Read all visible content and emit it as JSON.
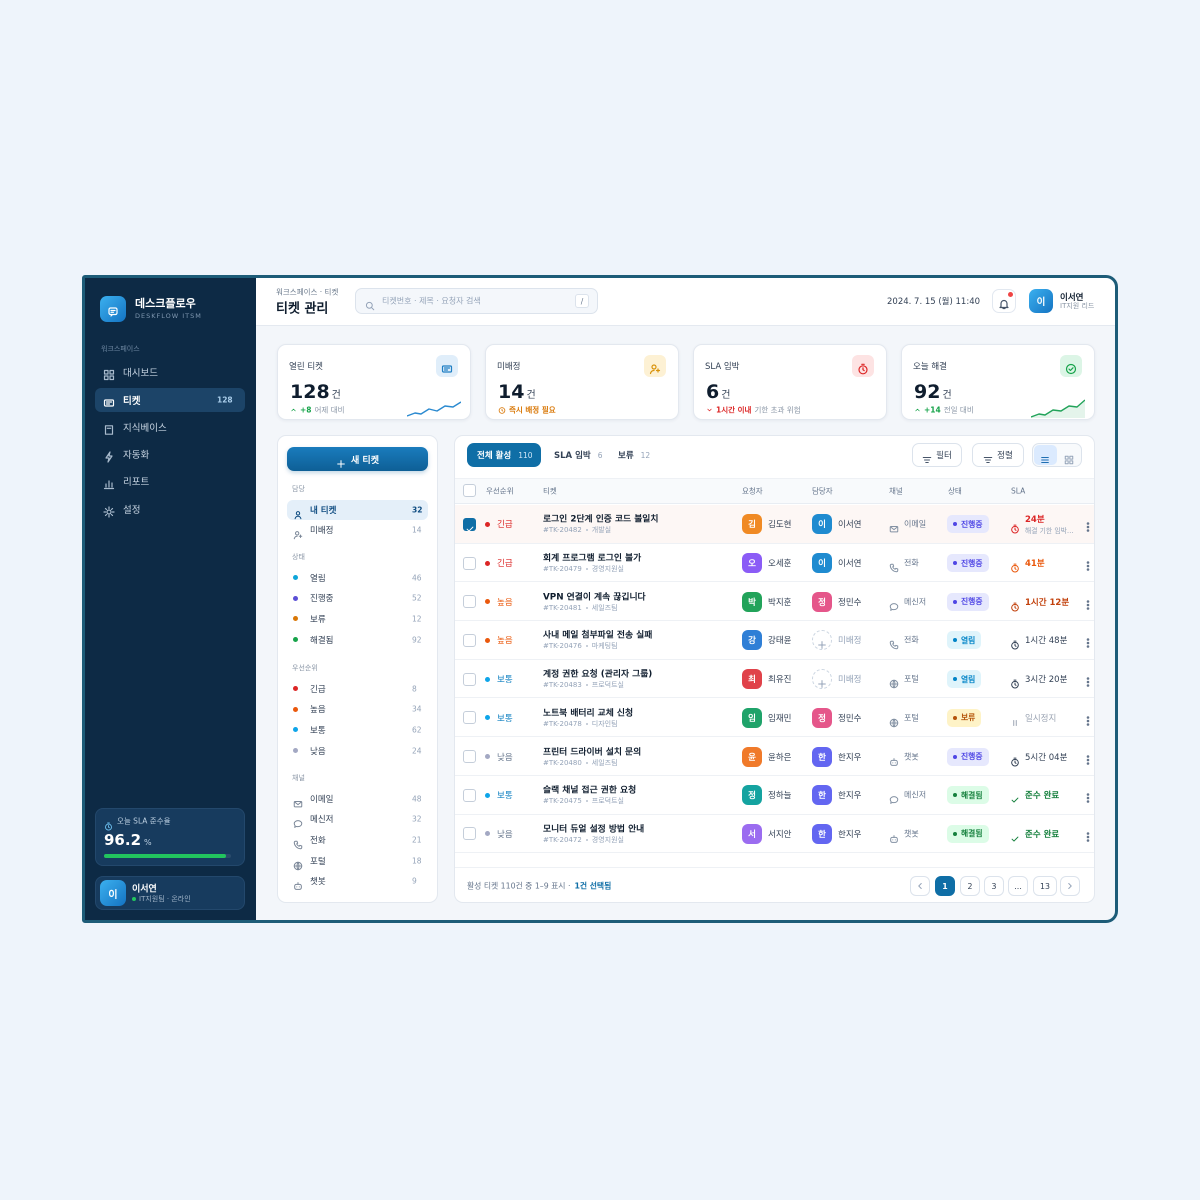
{
  "sidebar": {
    "brand": "데스크플로우",
    "brand_sub": "DESKFLOW ITSM",
    "section": "워크스페이스",
    "nav": [
      {
        "label": "대시보드"
      },
      {
        "label": "티켓",
        "count": 128
      },
      {
        "label": "지식베이스"
      },
      {
        "label": "자동화"
      },
      {
        "label": "리포트"
      },
      {
        "label": "설정"
      }
    ],
    "sla": {
      "label": "오늘 SLA 준수율",
      "value": 96.2,
      "unit": "%"
    },
    "user": {
      "avatar": "이",
      "name": "이서연",
      "status": "IT지원팀 · 온라인"
    }
  },
  "header": {
    "breadcrumb": "워크스페이스 · 티켓",
    "title": "티켓 관리",
    "search_placeholder": "티켓번호 · 제목 · 요청자 검색",
    "search_shortcut": "/",
    "datetime": "2024. 7. 15 (월) 11:40",
    "user": {
      "avatar": "이",
      "name": "이서연",
      "role": "IT지원 리드"
    }
  },
  "kpis": [
    {
      "label": "열린 티켓",
      "value": 128,
      "unit": "건",
      "delta": "+8",
      "note": "어제 대비"
    },
    {
      "label": "미배정",
      "value": 14,
      "unit": "건",
      "note": "즉시 배정 필요"
    },
    {
      "label": "SLA 임박",
      "value": 6,
      "unit": "건",
      "delta": "1시간 이내",
      "note": "기한 초과 위험"
    },
    {
      "label": "오늘 해결",
      "value": 92,
      "unit": "건",
      "delta": "+14",
      "note": "전일 대비"
    }
  ],
  "filters": {
    "new_button": "새 티켓",
    "groups": [
      {
        "title": "담당",
        "items": [
          {
            "label": "내 티켓",
            "count": 32
          },
          {
            "label": "미배정",
            "count": 14
          }
        ]
      },
      {
        "title": "상태",
        "items": [
          {
            "label": "열림",
            "count": 46
          },
          {
            "label": "진행중",
            "count": 52
          },
          {
            "label": "보류",
            "count": 12
          },
          {
            "label": "해결됨",
            "count": 92
          }
        ]
      },
      {
        "title": "우선순위",
        "items": [
          {
            "label": "긴급",
            "count": 8
          },
          {
            "label": "높음",
            "count": 34
          },
          {
            "label": "보통",
            "count": 62
          },
          {
            "label": "낮음",
            "count": 24
          }
        ]
      },
      {
        "title": "채널",
        "items": [
          {
            "label": "이메일",
            "count": 48
          },
          {
            "label": "메신저",
            "count": 32
          },
          {
            "label": "전화",
            "count": 21
          },
          {
            "label": "포털",
            "count": 18
          },
          {
            "label": "챗봇",
            "count": 9
          }
        ]
      }
    ]
  },
  "table": {
    "tabs": [
      {
        "label": "전체 활성",
        "count": 110
      },
      {
        "label": "SLA 임박",
        "count": 6
      },
      {
        "label": "보류",
        "count": 12
      }
    ],
    "filter_button": "필터",
    "sort_button": "정렬",
    "columns": [
      "우선순위",
      "티켓",
      "요청자",
      "담당자",
      "채널",
      "상태",
      "SLA"
    ],
    "rows": [
      {
        "priority": "긴급",
        "title": "로그인 2단계 인증 코드 불일치",
        "id": "#TK-20482",
        "team": "개발실",
        "requester_initial": "김",
        "requester": "김도현",
        "assignee_initial": "이",
        "assignee": "이서연",
        "channel": "이메일",
        "status": "진행중",
        "sla": "24분",
        "sla_note": "해결 기한 임박…"
      },
      {
        "priority": "긴급",
        "title": "회계 프로그램 로그인 불가",
        "id": "#TK-20479",
        "team": "경영지원실",
        "requester_initial": "오",
        "requester": "오세훈",
        "assignee_initial": "이",
        "assignee": "이서연",
        "channel": "전화",
        "status": "진행중",
        "sla": "41분"
      },
      {
        "priority": "높음",
        "title": "VPN 연결이 계속 끊깁니다",
        "id": "#TK-20481",
        "team": "세일즈팀",
        "requester_initial": "박",
        "requester": "박지훈",
        "assignee_initial": "정",
        "assignee": "정민수",
        "channel": "메신저",
        "status": "진행중",
        "sla": "1시간 12분"
      },
      {
        "priority": "높음",
        "title": "사내 메일 첨부파일 전송 실패",
        "id": "#TK-20476",
        "team": "마케팅팀",
        "requester_initial": "강",
        "requester": "강태윤",
        "assignee": "미배정",
        "channel": "전화",
        "status": "열림",
        "sla": "1시간 48분"
      },
      {
        "priority": "보통",
        "title": "계정 권한 요청 (관리자 그룹)",
        "id": "#TK-20483",
        "team": "프로덕트실",
        "requester_initial": "최",
        "requester": "최유진",
        "assignee": "미배정",
        "channel": "포털",
        "status": "열림",
        "sla": "3시간 20분"
      },
      {
        "priority": "보통",
        "title": "노트북 배터리 교체 신청",
        "id": "#TK-20478",
        "team": "디자인팀",
        "requester_initial": "임",
        "requester": "임재민",
        "assignee_initial": "정",
        "assignee": "정민수",
        "channel": "포털",
        "status": "보류",
        "sla": "일시정지"
      },
      {
        "priority": "낮음",
        "title": "프린터 드라이버 설치 문의",
        "id": "#TK-20480",
        "team": "세일즈팀",
        "requester_initial": "윤",
        "requester": "윤하은",
        "assignee_initial": "한",
        "assignee": "한지우",
        "channel": "챗봇",
        "status": "진행중",
        "sla": "5시간 04분"
      },
      {
        "priority": "보통",
        "title": "슬랙 채널 접근 권한 요청",
        "id": "#TK-20475",
        "team": "프로덕트실",
        "requester_initial": "정",
        "requester": "정하늘",
        "assignee_initial": "한",
        "assignee": "한지우",
        "channel": "메신저",
        "status": "해결됨",
        "sla": "준수 완료"
      },
      {
        "priority": "낮음",
        "title": "모니터 듀얼 설정 방법 안내",
        "id": "#TK-20472",
        "team": "경영지원실",
        "requester_initial": "서",
        "requester": "서지안",
        "assignee_initial": "한",
        "assignee": "한지우",
        "channel": "챗봇",
        "status": "해결됨",
        "sla": "준수 완료"
      }
    ],
    "footer": {
      "summary": "활성 티켓 110건 중 1–9 표시 ·",
      "selected": "1건 선택됨"
    },
    "pages": [
      "1",
      "2",
      "3",
      "…",
      "13"
    ]
  }
}
